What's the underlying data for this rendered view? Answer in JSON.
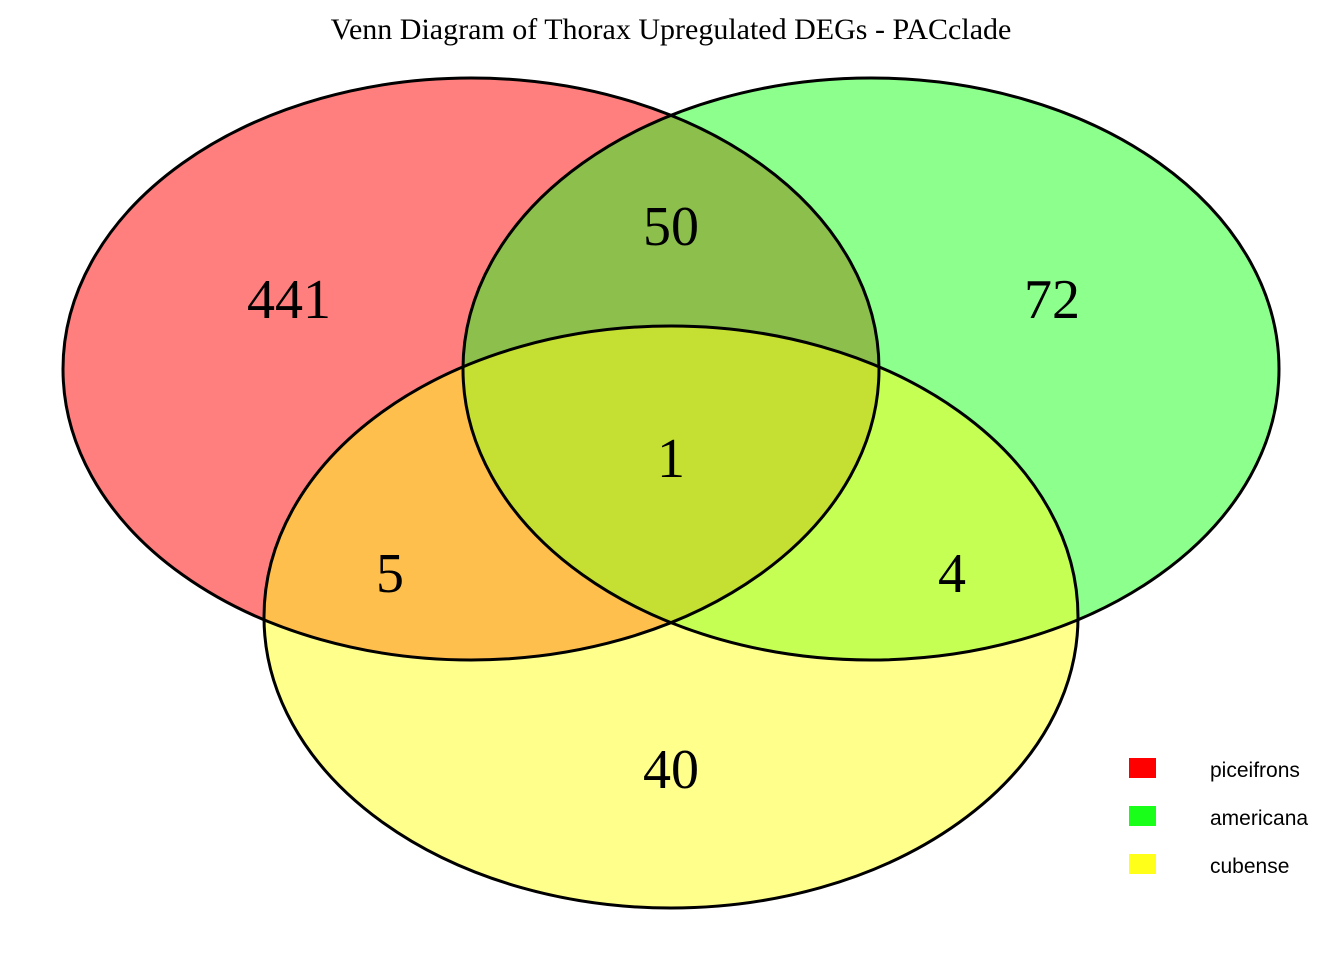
{
  "title": "Venn Diagram of Thorax Upregulated DEGs - PACclade",
  "sets": [
    {
      "name": "piceifrons",
      "color": "#ff0000"
    },
    {
      "name": "americana",
      "color": "#1aff1a"
    },
    {
      "name": "cubense",
      "color": "#ffff1a"
    }
  ],
  "regions": {
    "piceifrons_only": "441",
    "americana_only": "72",
    "cubense_only": "40",
    "piceifrons_americana": "50",
    "piceifrons_cubense": "5",
    "americana_cubense": "4",
    "all_three": "1"
  },
  "fill_opacity": 0.5
}
